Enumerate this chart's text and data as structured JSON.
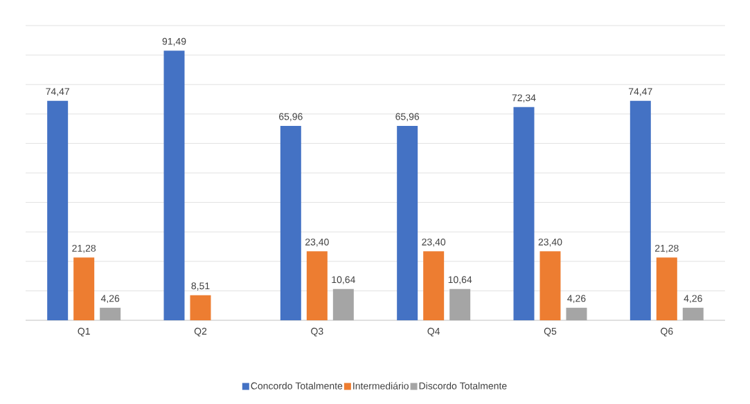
{
  "chart_data": {
    "type": "bar",
    "categories": [
      "Q1",
      "Q2",
      "Q3",
      "Q4",
      "Q5",
      "Q6"
    ],
    "series": [
      {
        "name": "Concordo Totalmente",
        "color": "#4472c4",
        "values": [
          74.47,
          91.49,
          65.96,
          65.96,
          72.34,
          74.47
        ],
        "value_labels": [
          "74,47",
          "91,49",
          "65,96",
          "65,96",
          "72,34",
          "74,47"
        ]
      },
      {
        "name": "Intermediário",
        "color": "#ed7d31",
        "values": [
          21.28,
          8.51,
          23.4,
          23.4,
          23.4,
          21.28
        ],
        "value_labels": [
          "21,28",
          "8,51",
          "23,40",
          "23,40",
          "23,40",
          "21,28"
        ]
      },
      {
        "name": "Discordo Totalmente",
        "color": "#a5a5a5",
        "values": [
          4.26,
          null,
          10.64,
          10.64,
          4.26,
          4.26
        ],
        "value_labels": [
          "4,26",
          null,
          "10,64",
          "10,64",
          "4,26",
          "4,26"
        ]
      }
    ],
    "ylim": [
      0,
      100
    ],
    "yticks": [
      {
        "value": 0,
        "label": null
      },
      {
        "value": 10,
        "label": null
      },
      {
        "value": 20,
        "label": null
      },
      {
        "value": 30,
        "label": null
      },
      {
        "value": 40,
        "label": null
      },
      {
        "value": 50,
        "label": null
      },
      {
        "value": 60,
        "label": null
      },
      {
        "value": 70,
        "label": null
      },
      {
        "value": 80,
        "label": null
      },
      {
        "value": 90,
        "label": null
      },
      {
        "value": 100,
        "label": null
      }
    ],
    "grid": "y",
    "legend": "bottom",
    "tick_labels": "x"
  }
}
